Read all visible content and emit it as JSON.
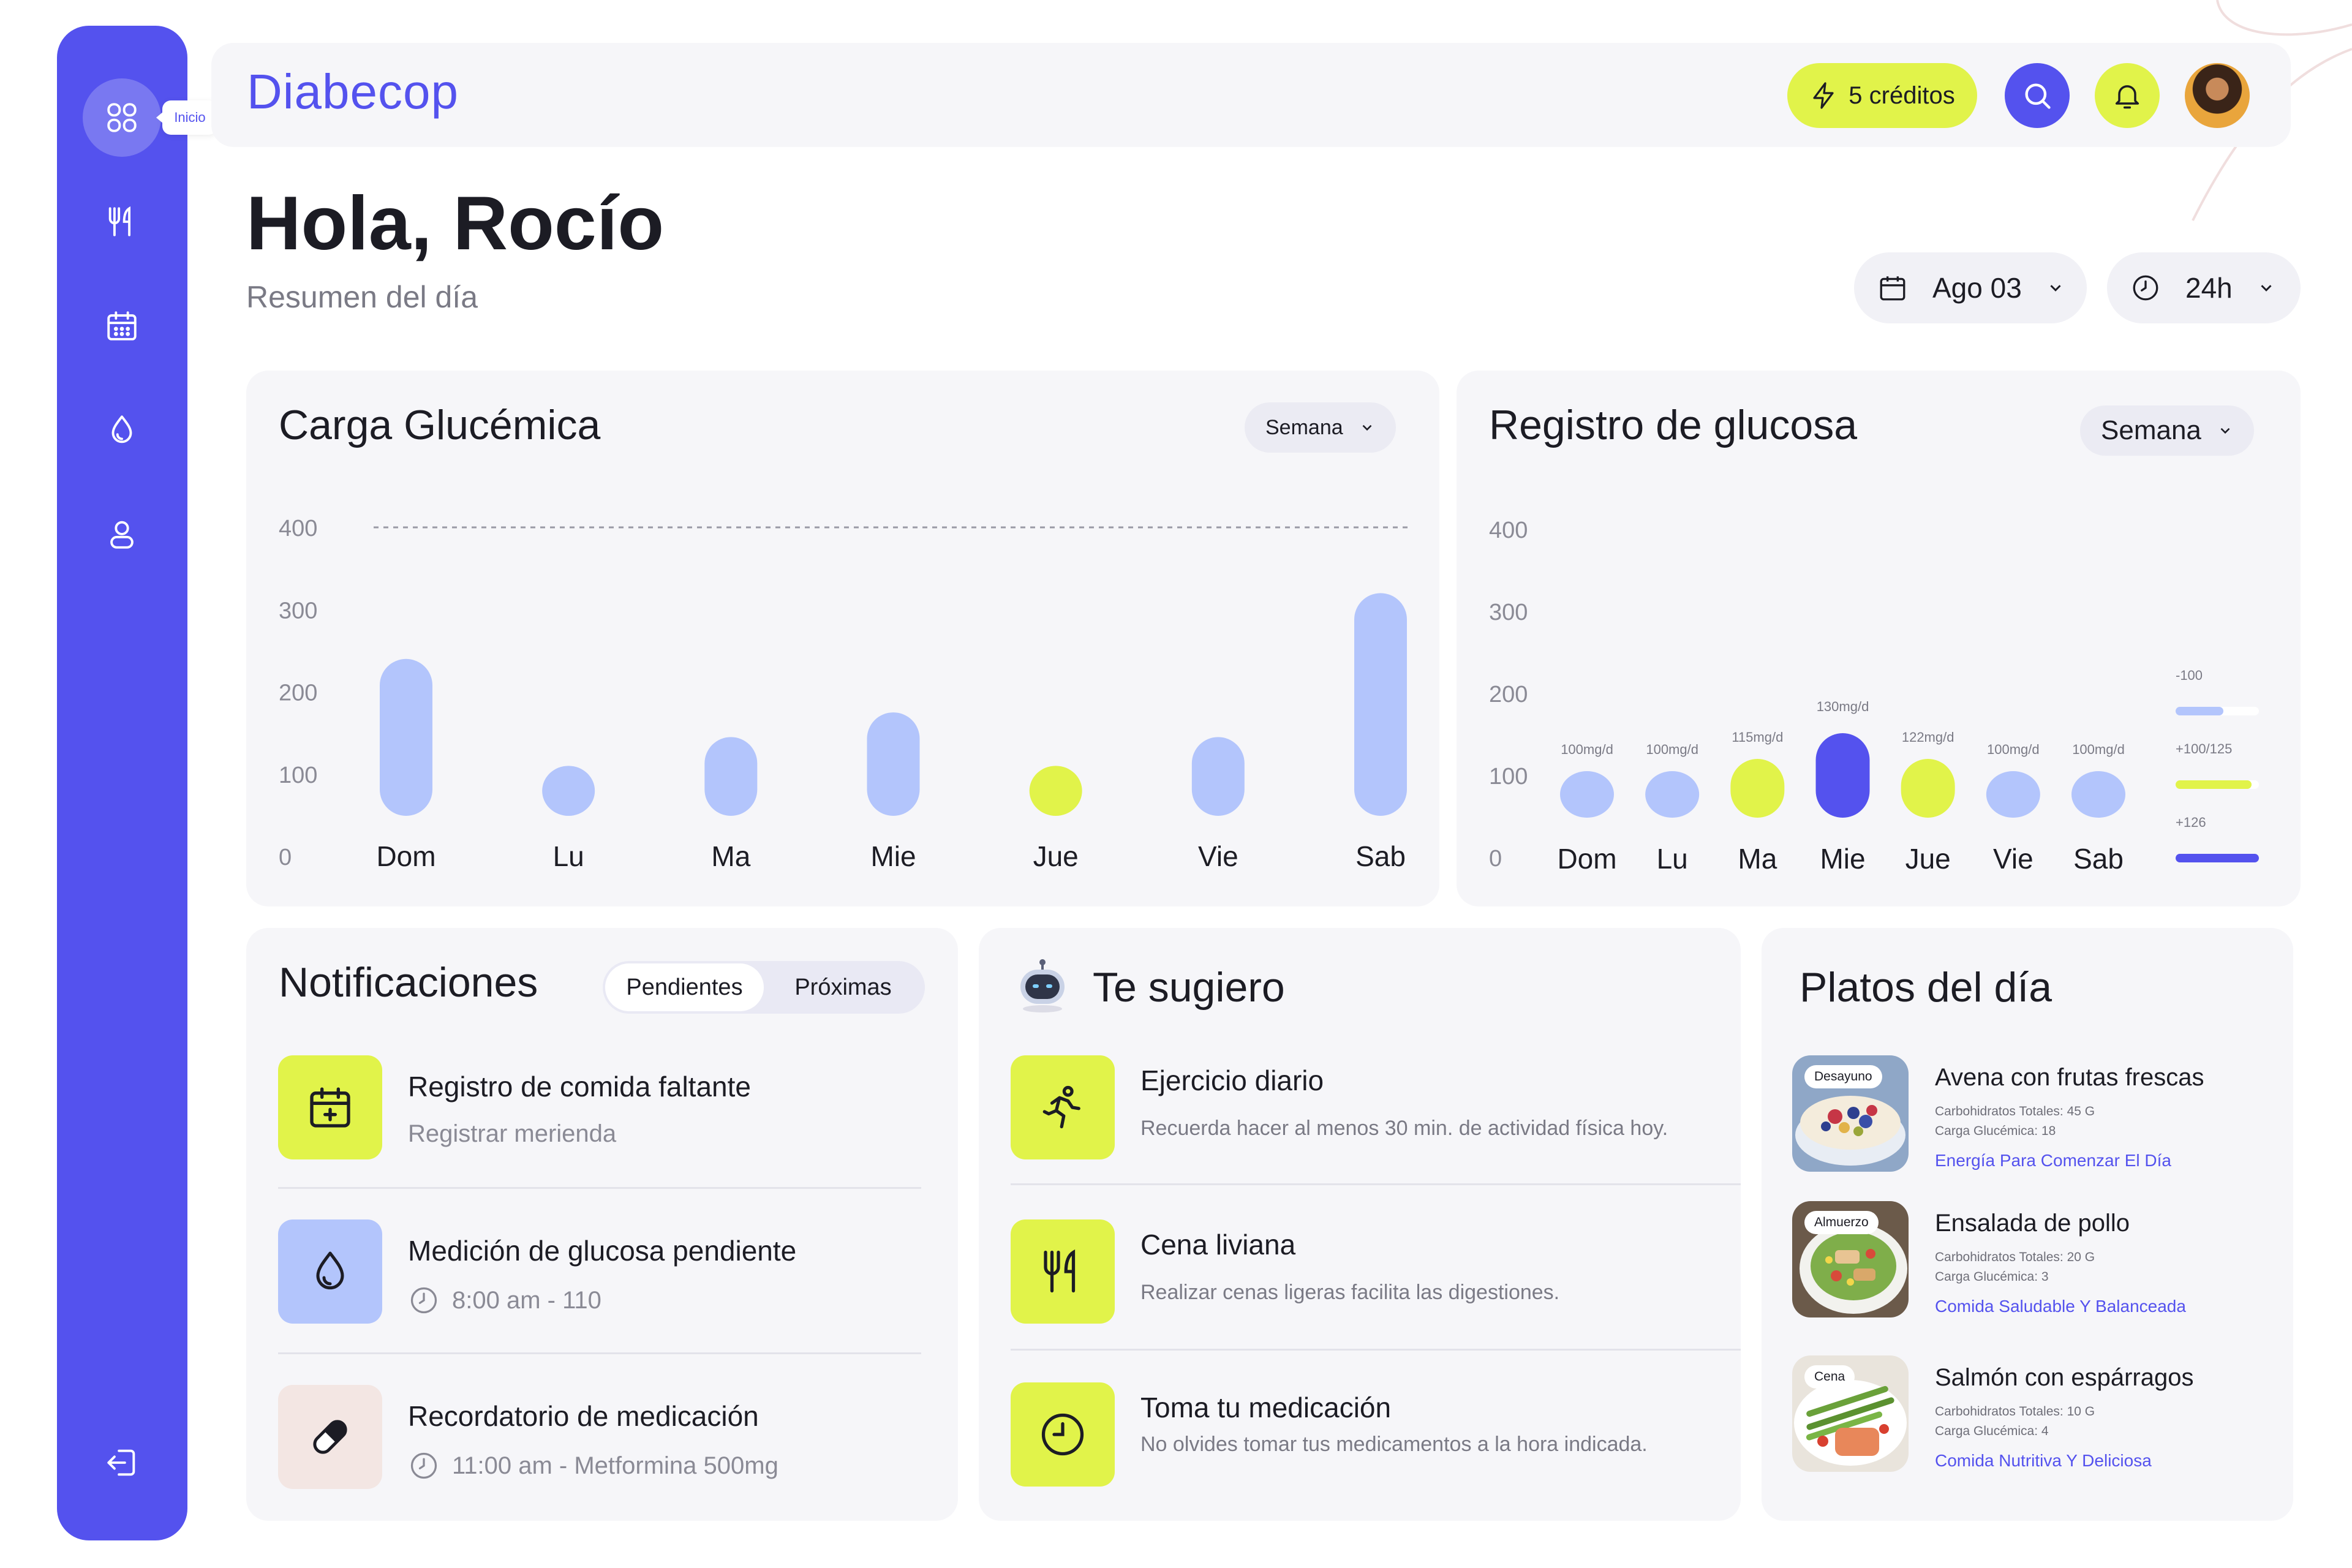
{
  "app": {
    "logo": "Diabecop",
    "tooltip": "Inicio"
  },
  "sidebar": {
    "items": [
      {
        "icon": "grid-icon",
        "label": "Inicio",
        "active": true
      },
      {
        "icon": "fork-knife-icon"
      },
      {
        "icon": "calendar-icon"
      },
      {
        "icon": "drop-icon"
      },
      {
        "icon": "user-icon"
      }
    ],
    "logout_icon": "logout-icon"
  },
  "header": {
    "credits_label": "5 créditos"
  },
  "greeting": {
    "title": "Hola, Rocío",
    "subtitle": "Resumen del día"
  },
  "filters": {
    "date": "Ago 03",
    "time": "24h"
  },
  "carga": {
    "title": "Carga Glucémica",
    "range_label": "Semana"
  },
  "registro": {
    "title": "Registro de glucosa",
    "range_label": "Semana"
  },
  "chart_data": [
    {
      "type": "bar",
      "title": "Carga Glucémica",
      "categories": [
        "Dom",
        "Lu",
        "Ma",
        "Mie",
        "Jue",
        "Vie",
        "Sab"
      ],
      "values": [
        240,
        110,
        145,
        175,
        110,
        145,
        320
      ],
      "highlight": [
        false,
        false,
        false,
        false,
        true,
        false,
        false
      ],
      "ylim": [
        0,
        400
      ],
      "yticks": [
        "400",
        "300",
        "200",
        "100",
        "0"
      ],
      "reference_line": 400,
      "colors": {
        "bar": "#b3c5fc",
        "highlight": "#e1f34a",
        "reference": "#9a9aa5"
      }
    },
    {
      "type": "scatter",
      "title": "Registro de glucosa",
      "categories": [
        "Dom",
        "Lu",
        "Ma",
        "Mie",
        "Jue",
        "Vie",
        "Sab"
      ],
      "values": [
        100,
        100,
        115,
        130,
        122,
        100,
        100
      ],
      "labels": [
        "100mg/d",
        "100mg/d",
        "115mg/d",
        "130mg/d",
        "122mg/d",
        "100mg/d",
        "100mg/d"
      ],
      "levels": [
        "low",
        "low",
        "mid",
        "high",
        "mid",
        "low",
        "low"
      ],
      "ylim": [
        0,
        400
      ],
      "yticks": [
        "400",
        "300",
        "200",
        "100",
        "0"
      ],
      "legend": [
        {
          "label": "-100",
          "color": "#b3c5fc"
        },
        {
          "label": "+100/125",
          "color": "#e1f34a"
        },
        {
          "label": "+126",
          "color": "#5452ee"
        }
      ]
    }
  ],
  "notificaciones": {
    "title": "Notificaciones",
    "tabs": [
      "Pendientes",
      "Próximas"
    ],
    "items": [
      {
        "icon": "calendar-plus-icon",
        "title": "Registro de comida faltante",
        "subtitle": "Registrar merienda",
        "color": "#e1f34a"
      },
      {
        "icon": "drop-icon",
        "title": "Medición de glucosa pendiente",
        "subtitle": "8:00 am - 110",
        "color": "#b3c5fc"
      },
      {
        "icon": "pill-icon",
        "title": "Recordatorio de medicación",
        "subtitle": "11:00 am - Metformina 500mg",
        "color": "#f3e6e3"
      }
    ]
  },
  "sugiero": {
    "title": "Te sugiero",
    "items": [
      {
        "icon": "running-icon",
        "title": "Ejercicio diario",
        "subtitle": "Recuerda hacer al menos 30 min. de actividad física hoy."
      },
      {
        "icon": "fork-knife-icon",
        "title": "Cena liviana",
        "subtitle": "Realizar cenas ligeras facilita las digestiones."
      },
      {
        "icon": "clock-icon",
        "title": "Toma tu medicación",
        "subtitle": "No olvides tomar tus medicamentos a la hora indicada."
      }
    ]
  },
  "platos": {
    "title": "Platos del día",
    "items": [
      {
        "meal": "Desayuno",
        "name": "Avena con frutas frescas",
        "carbs": "Carbohidratos Totales: 45 G",
        "load": "Carga Glucémica: 18",
        "tag": "Energía Para Comenzar El Día"
      },
      {
        "meal": "Almuerzo",
        "name": "Ensalada de pollo",
        "carbs": "Carbohidratos Totales: 20 G",
        "load": "Carga Glucémica: 3",
        "tag": "Comida Saludable Y Balanceada"
      },
      {
        "meal": "Cena",
        "name": "Salmón con espárragos",
        "carbs": "Carbohidratos Totales: 10 G",
        "load": "Carga Glucémica: 4",
        "tag": "Comida Nutritiva Y Deliciosa"
      }
    ]
  }
}
